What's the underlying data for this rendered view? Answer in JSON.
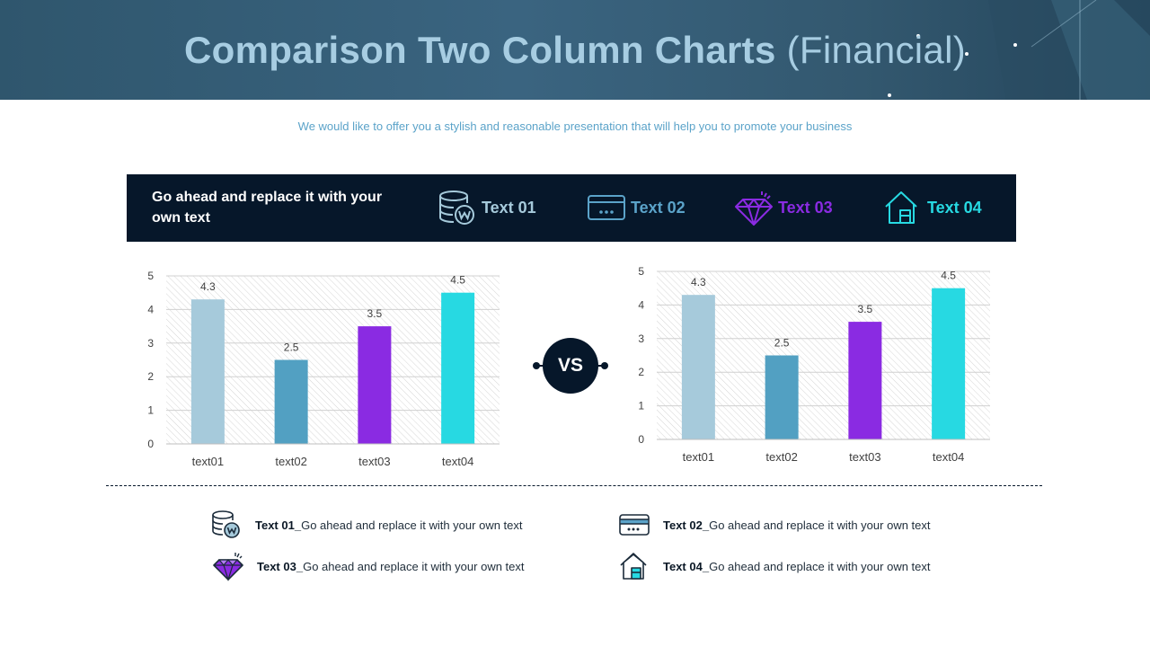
{
  "header": {
    "title_bold": "Comparison Two Column Charts",
    "title_light": "(Financial)"
  },
  "subtitle": "We would like to offer you a stylish and reasonable presentation that will help you to promote your business",
  "legend": {
    "heading": "Go ahead and replace it with your own text",
    "items": [
      {
        "label": "Text 01",
        "icon": "database-coin-icon",
        "color": "#a6cadb"
      },
      {
        "label": "Text 02",
        "icon": "credit-card-icon",
        "color": "#5ba3c9"
      },
      {
        "label": "Text 03",
        "icon": "diamond-icon",
        "color": "#8a2be2"
      },
      {
        "label": "Text 04",
        "icon": "house-icon",
        "color": "#27d9e2"
      }
    ]
  },
  "vs_label": "VS",
  "chart_data": [
    {
      "type": "bar",
      "categories": [
        "text01",
        "text02",
        "text03",
        "text04"
      ],
      "values": [
        4.3,
        2.5,
        3.5,
        4.5
      ],
      "value_labels": [
        "4.3",
        "2.5",
        "3.5",
        "4.5"
      ],
      "colors": [
        "#a6cadb",
        "#52a0c2",
        "#8a2be2",
        "#27d9e2"
      ],
      "ylim": [
        0,
        5
      ],
      "yticks": [
        "0",
        "1",
        "2",
        "3",
        "4",
        "5"
      ],
      "title": "",
      "xlabel": "",
      "ylabel": ""
    },
    {
      "type": "bar",
      "categories": [
        "text01",
        "text02",
        "text03",
        "text04"
      ],
      "values": [
        4.3,
        2.5,
        3.5,
        4.5
      ],
      "value_labels": [
        "4.3",
        "2.5",
        "3.5",
        "4.5"
      ],
      "colors": [
        "#a6cadb",
        "#52a0c2",
        "#8a2be2",
        "#27d9e2"
      ],
      "ylim": [
        0,
        5
      ],
      "yticks": [
        "0",
        "1",
        "2",
        "3",
        "4",
        "5"
      ],
      "title": "",
      "xlabel": "",
      "ylabel": ""
    }
  ],
  "notes": [
    {
      "label": "Text 01_",
      "text": "Go ahead and replace it with your own text",
      "icon": "database-coin-icon"
    },
    {
      "label": "Text 02_",
      "text": "Go ahead and replace it with your own text",
      "icon": "credit-card-icon"
    },
    {
      "label": "Text 03_",
      "text": "Go ahead and replace it with your own text",
      "icon": "diamond-icon"
    },
    {
      "label": "Text 04_",
      "text": "Go ahead and replace it with your own text",
      "icon": "house-icon"
    }
  ]
}
